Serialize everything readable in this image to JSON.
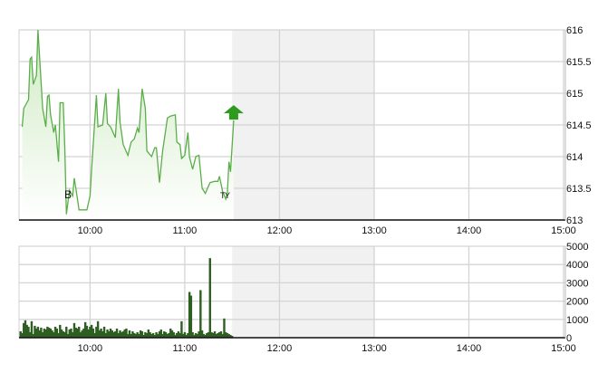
{
  "chart_data": [
    {
      "type": "area",
      "panel": "price",
      "x_range": [
        "09:15",
        "15:00"
      ],
      "ylim": [
        613,
        616
      ],
      "y_ticks": [
        "616",
        "615.5",
        "615",
        "614.5",
        "614",
        "613.5",
        "613"
      ],
      "x_ticks": [
        "10:00",
        "11:00",
        "12:00",
        "13:00",
        "14:00",
        "15:00"
      ],
      "grid": true,
      "y_axis_side": "right",
      "shaded_interval": [
        "11:30",
        "13:00"
      ],
      "colors": {
        "line": "#5aae4a",
        "fill_top": "#cfeac3",
        "shade": "#f1f1f1",
        "arrow": "#2e9a1e"
      },
      "last_direction": "up",
      "markers": [
        {
          "time": "09:46",
          "label": "B"
        },
        {
          "time": "11:24",
          "label": "T"
        },
        {
          "time": "11:27",
          "label": "Y"
        }
      ],
      "series": [
        {
          "x": [
            "09:17",
            "09:18",
            "09:21",
            "09:22",
            "09:23",
            "09:24",
            "09:26",
            "09:27",
            "09:30",
            "09:32",
            "09:33",
            "09:34",
            "09:35",
            "09:37",
            "09:38",
            "09:40",
            "09:41",
            "09:43",
            "09:44",
            "09:45",
            "09:47",
            "09:49",
            "09:50",
            "09:52",
            "09:53",
            "09:58",
            "10:00",
            "10:01",
            "10:04",
            "10:05",
            "10:08",
            "10:10",
            "10:11",
            "10:13",
            "10:16",
            "10:18",
            "10:19",
            "10:21",
            "10:24",
            "10:26",
            "10:28",
            "10:30",
            "10:31",
            "10:33",
            "10:35",
            "10:36",
            "10:39",
            "10:41",
            "10:42",
            "10:44",
            "10:46",
            "10:49",
            "10:51",
            "10:54",
            "10:55",
            "10:57",
            "10:58",
            "11:00",
            "11:02",
            "11:03",
            "11:05",
            "11:07",
            "11:09",
            "11:11",
            "11:13",
            "11:16",
            "11:19",
            "11:21",
            "11:22",
            "11:24",
            "11:26",
            "11:27",
            "11:28",
            "11:29",
            "11:31"
          ],
          "y": [
            614.47,
            614.76,
            614.9,
            615.54,
            615.57,
            615.14,
            615.28,
            616.0,
            614.76,
            614.47,
            614.95,
            614.97,
            614.66,
            614.38,
            614.5,
            613.92,
            614.85,
            614.85,
            614.14,
            613.09,
            613.47,
            613.38,
            613.66,
            613.33,
            613.16,
            613.16,
            613.38,
            613.8,
            614.97,
            614.47,
            614.5,
            615.0,
            614.52,
            614.47,
            614.3,
            615.07,
            614.54,
            614.19,
            614.02,
            614.23,
            614.28,
            614.45,
            614.38,
            615.07,
            614.76,
            614.09,
            614.0,
            614.14,
            614.14,
            613.59,
            614.09,
            614.61,
            614.64,
            614.66,
            614.23,
            614.19,
            613.97,
            614.02,
            614.38,
            614.0,
            613.8,
            614.0,
            614.02,
            613.5,
            613.42,
            613.59,
            613.61,
            613.61,
            613.69,
            613.45,
            613.33,
            613.42,
            613.92,
            613.76,
            614.57
          ]
        }
      ]
    },
    {
      "type": "bar",
      "panel": "volume",
      "x_range": [
        "09:15",
        "15:00"
      ],
      "ylim": [
        0,
        5000
      ],
      "y_ticks": [
        "5000",
        "4000",
        "3000",
        "2000",
        "1000",
        "0"
      ],
      "x_ticks": [
        "10:00",
        "11:00",
        "12:00",
        "13:00",
        "14:00",
        "15:00"
      ],
      "grid": true,
      "y_axis_side": "right",
      "shaded_interval": [
        "11:30",
        "13:00"
      ],
      "colors": {
        "bar": "#2f5e22"
      },
      "start_time": "09:16",
      "interval_minutes": 1,
      "values": [
        350,
        250,
        800,
        950,
        700,
        600,
        300,
        900,
        200,
        650,
        500,
        600,
        400,
        550,
        300,
        500,
        450,
        600,
        550,
        500,
        400,
        300,
        600,
        500,
        250,
        700,
        450,
        350,
        300,
        600,
        200,
        450,
        500,
        300,
        800,
        550,
        500,
        600,
        300,
        400,
        500,
        850,
        650,
        450,
        600,
        700,
        500,
        250,
        600,
        900,
        400,
        500,
        350,
        600,
        250,
        450,
        350,
        500,
        400,
        300,
        350,
        500,
        250,
        400,
        300,
        350,
        450,
        500,
        200,
        400,
        200,
        350,
        250,
        200,
        300,
        200,
        400,
        350,
        150,
        300,
        250,
        450,
        300,
        200,
        250,
        150,
        300,
        200,
        350,
        450,
        200,
        350,
        300,
        200,
        250,
        500,
        400,
        300,
        150,
        250,
        350,
        250,
        900,
        200,
        300,
        150,
        250,
        2500,
        2300,
        300,
        150,
        250,
        200,
        350,
        2600,
        400,
        200,
        150,
        250,
        300,
        4350,
        300,
        250,
        350,
        200,
        250,
        300,
        350,
        200,
        1050,
        300,
        250,
        200,
        150,
        100
      ]
    }
  ]
}
